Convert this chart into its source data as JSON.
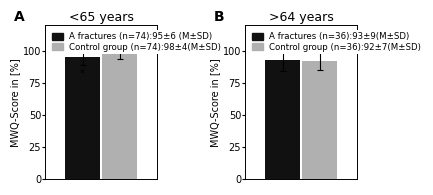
{
  "panel_A": {
    "title": "<65 years",
    "label": "A",
    "bars": [
      {
        "label": "A fractures (n=74):95±6 (M±SD)",
        "value": 95,
        "error": 6,
        "color": "#111111"
      },
      {
        "label": "Control group (n=74):98±4(M±SD)",
        "value": 98,
        "error": 4,
        "color": "#b0b0b0"
      }
    ],
    "star": true
  },
  "panel_B": {
    "title": ">64 years",
    "label": "B",
    "bars": [
      {
        "label": "A fractures (n=36):93±9(M±SD)",
        "value": 93,
        "error": 9,
        "color": "#111111"
      },
      {
        "label": "Control group (n=36):92±7(M±SD)",
        "value": 92,
        "error": 7,
        "color": "#b0b0b0"
      }
    ],
    "star": false
  },
  "ylim": [
    0,
    120
  ],
  "yticks": [
    0,
    25,
    50,
    75,
    100
  ],
  "ylabel": "MWQ-Score in [%]",
  "bar_width": 0.28,
  "background_color": "#ffffff",
  "title_fontsize": 9,
  "ylabel_fontsize": 7,
  "legend_fontsize": 6.2,
  "tick_fontsize": 7
}
